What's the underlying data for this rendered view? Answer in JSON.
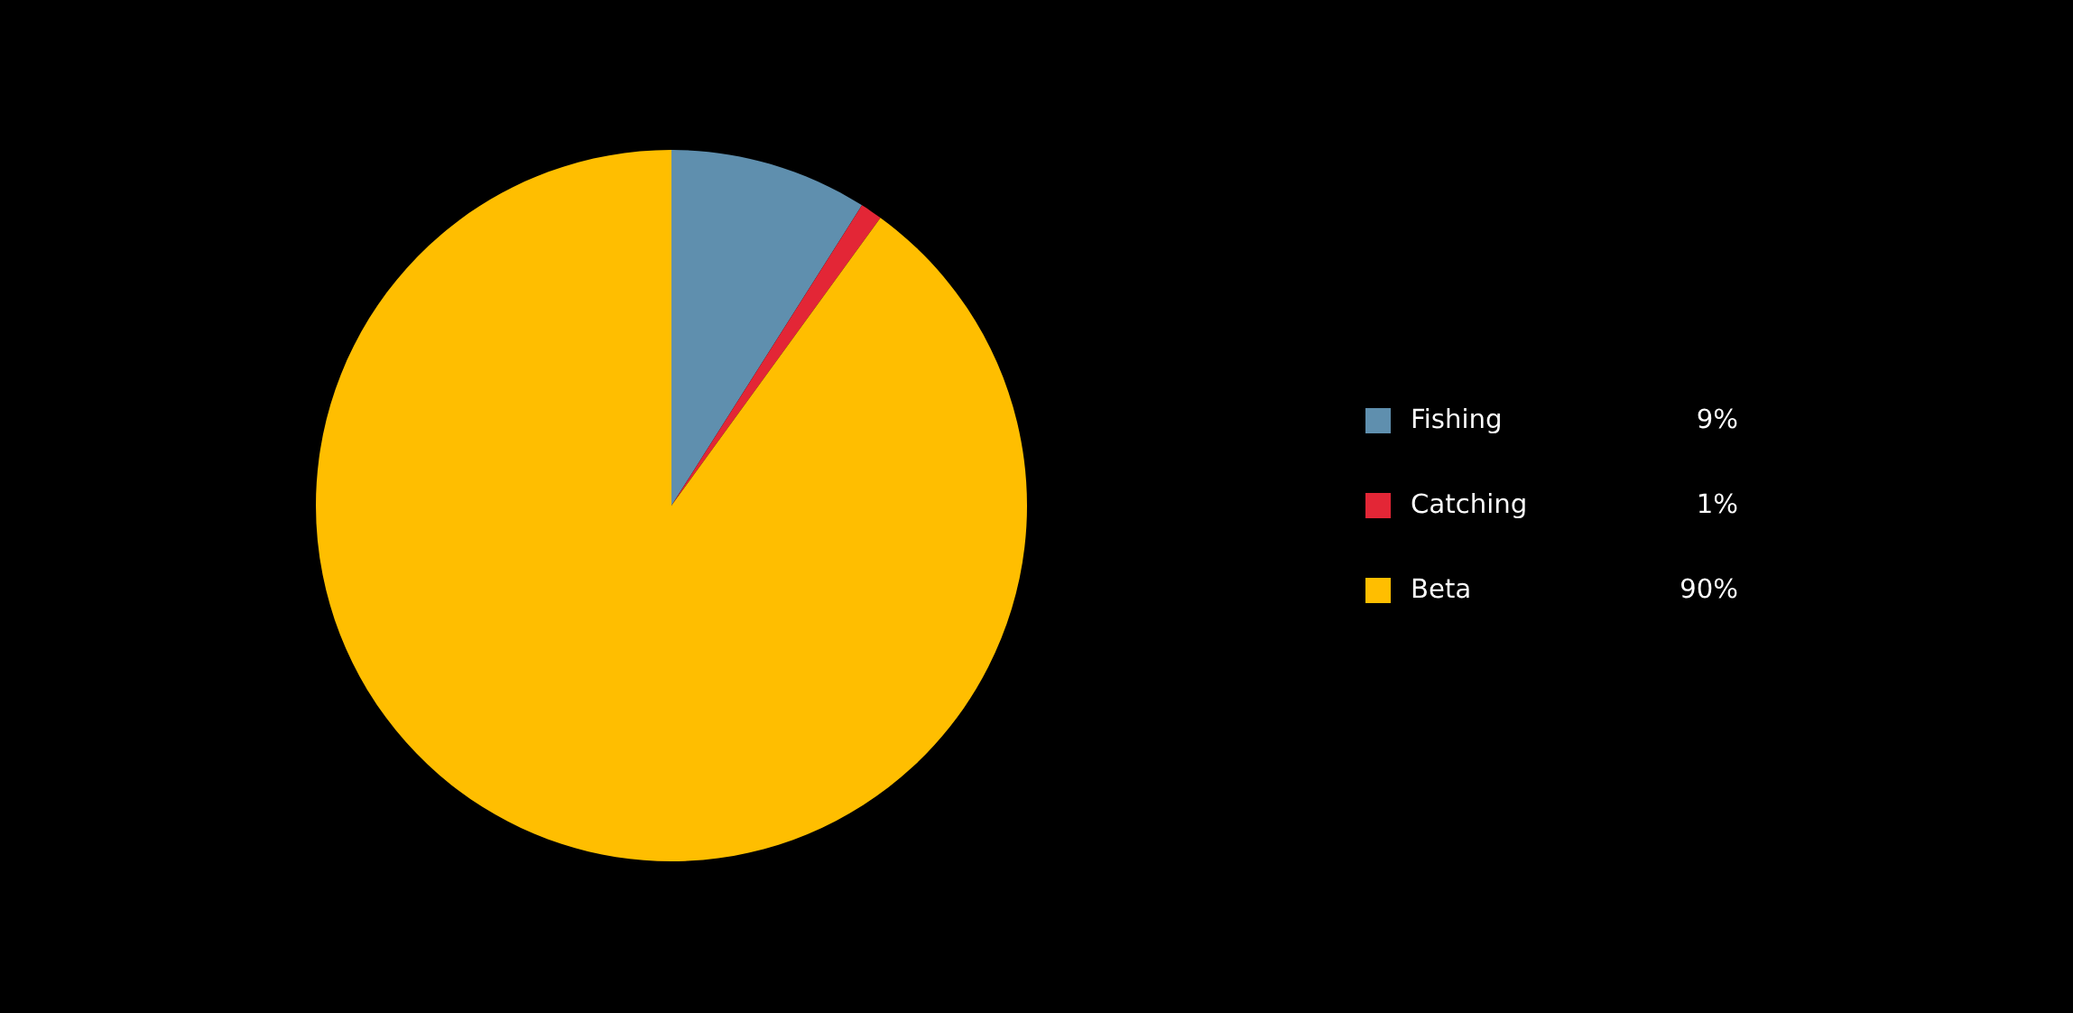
{
  "chart_data": {
    "type": "pie",
    "categories": [
      "Fishing",
      "Catching",
      "Beta"
    ],
    "values": [
      9,
      1,
      90
    ],
    "colors": [
      "#5f8fae",
      "#e32636",
      "#ffbe00"
    ],
    "value_labels": [
      "9%",
      "1%",
      "90%"
    ],
    "legend": "right"
  }
}
